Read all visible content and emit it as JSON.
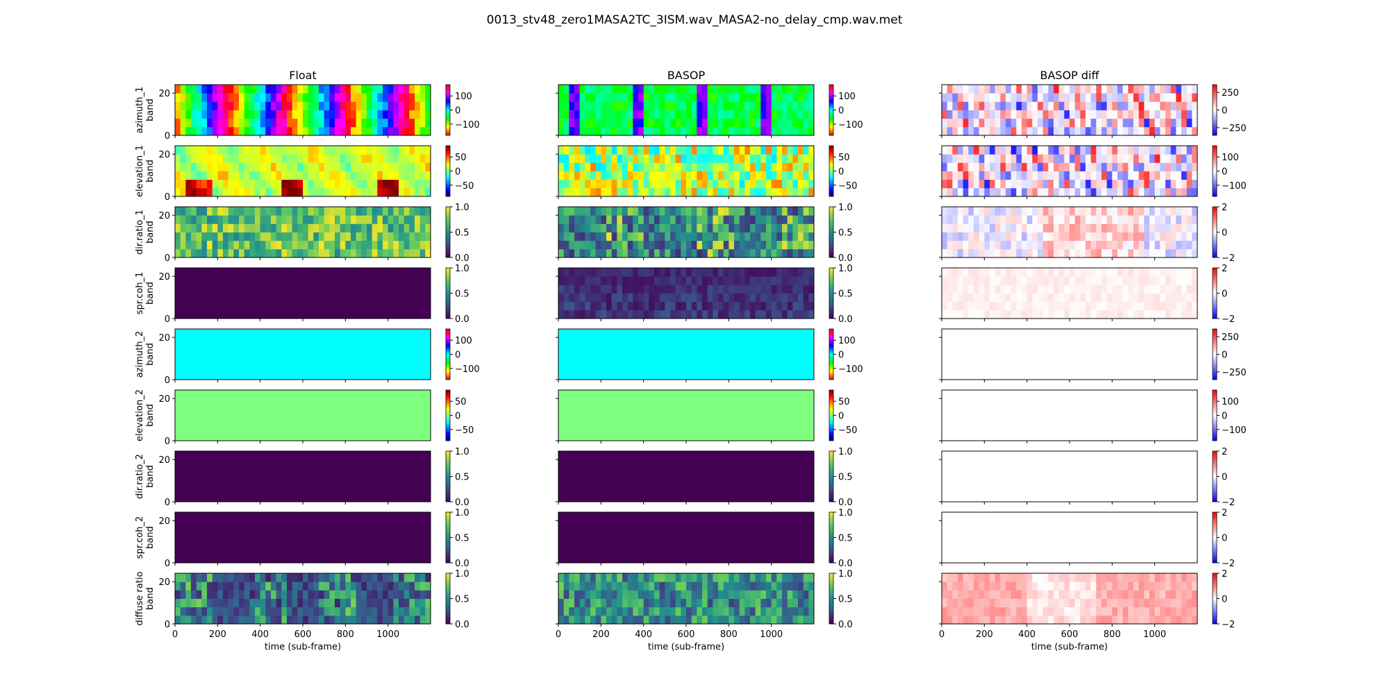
{
  "figure": {
    "title": "0013_stv48_zero1MASA2TC_3ISM.wav_MASA2-no_delay_cmp.wav.met"
  },
  "chart_data": {
    "type": "heatmap",
    "columns": [
      "Float",
      "BASOP",
      "BASOP diff"
    ],
    "rows": [
      "azimuth_1",
      "elevation_1",
      "dir.ratio_1",
      "spr.coh_1",
      "azimuth_2",
      "elevation_2",
      "dir.ratio_2",
      "spr.coh_2",
      "diffuse ratio"
    ],
    "ylabel_suffix": "band",
    "xlabel": "time (sub-frame)",
    "xlim": [
      0,
      1200
    ],
    "ylim": [
      0,
      24
    ],
    "xticks": [
      "0",
      "200",
      "400",
      "600",
      "800",
      "1000"
    ],
    "yticks": [
      "0",
      "20"
    ],
    "colormaps": {
      "azimuth": "hsv",
      "elevation": "jet",
      "ratio": "viridis",
      "diff": "bwr"
    },
    "colorbars": {
      "azimuth": {
        "range": [
          -180,
          180
        ],
        "ticks": [
          "100",
          "0",
          "−100"
        ]
      },
      "elevation": {
        "range": [
          -90,
          90
        ],
        "ticks": [
          "50",
          "0",
          "−50"
        ]
      },
      "ratio": {
        "range": [
          0,
          1
        ],
        "ticks": [
          "1.0",
          "0.5",
          "0.0"
        ]
      },
      "azimuth_diff": {
        "range": [
          -360,
          360
        ],
        "ticks": [
          "250",
          "0",
          "−250"
        ]
      },
      "elevation_diff": {
        "range": [
          -180,
          180
        ],
        "ticks": [
          "100",
          "0",
          "−100"
        ]
      },
      "ratio_diff": {
        "range": [
          -2,
          2
        ],
        "ticks": [
          "2",
          "0",
          "−2"
        ]
      }
    },
    "constant_fields": {
      "spr.coh_1 Float": 0,
      "azimuth_2 Float": 0,
      "azimuth_2 BASOP": 0,
      "elevation_2 Float": 0,
      "elevation_2 BASOP": 0,
      "dir.ratio_2 Float": 0,
      "dir.ratio_2 BASOP": 0,
      "spr.coh_2 Float": 0,
      "spr.coh_2 BASOP": 0,
      "azimuth_2 BASOP diff": 0,
      "elevation_2 BASOP diff": 0,
      "dir.ratio_2 BASOP diff": 0,
      "spr.coh_2 BASOP diff": 0
    }
  }
}
